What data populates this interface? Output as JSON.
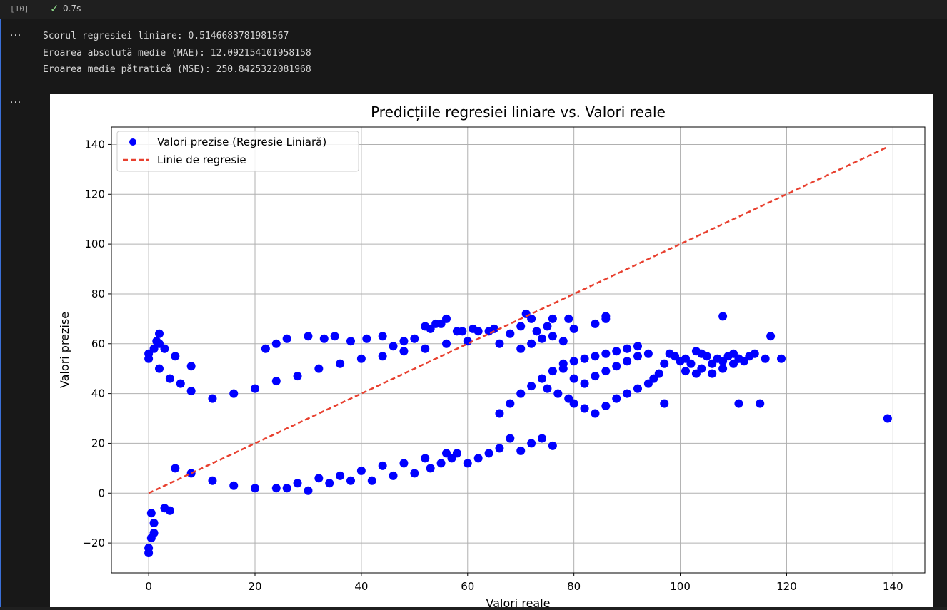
{
  "cell": {
    "execution_count": "[10]",
    "status_icon": "check-icon",
    "duration": "0.7s"
  },
  "output": {
    "lines": [
      "Scorul regresiei liniare: 0.5146683781981567",
      "Eroarea absolută medie (MAE): 12.092154101958158",
      "Eroarea medie pătratică (MSE): 250.8425322081968"
    ],
    "ellipsis": "..."
  },
  "chart_data": {
    "type": "scatter",
    "title": "Predicțiile regresiei liniare vs. Valori reale",
    "xlabel": "Valori reale",
    "ylabel": "Valori prezise",
    "xlim": [
      -7,
      146
    ],
    "ylim": [
      -32,
      147
    ],
    "xticks": [
      0,
      20,
      40,
      60,
      80,
      100,
      120,
      140
    ],
    "yticks": [
      -20,
      0,
      20,
      40,
      60,
      80,
      100,
      120,
      140
    ],
    "grid": true,
    "legend_position": "top-left",
    "colors": {
      "points": "#0000ff",
      "line": "#e8402f"
    },
    "series": [
      {
        "name": "Valori prezise (Regresie Liniară)",
        "kind": "scatter",
        "color": "#0000ff",
        "points": [
          [
            0,
            -24
          ],
          [
            0,
            -22
          ],
          [
            0.5,
            -18
          ],
          [
            1,
            -16
          ],
          [
            1,
            -12
          ],
          [
            0.5,
            -8
          ],
          [
            0,
            54
          ],
          [
            0,
            56
          ],
          [
            1,
            58
          ],
          [
            1.5,
            61
          ],
          [
            2,
            64
          ],
          [
            3,
            -6
          ],
          [
            4,
            -7
          ],
          [
            2,
            60
          ],
          [
            3,
            58
          ],
          [
            5,
            55
          ],
          [
            8,
            51
          ],
          [
            2,
            50
          ],
          [
            4,
            46
          ],
          [
            6,
            44
          ],
          [
            8,
            41
          ],
          [
            12,
            38
          ],
          [
            16,
            40
          ],
          [
            20,
            42
          ],
          [
            24,
            45
          ],
          [
            28,
            47
          ],
          [
            32,
            50
          ],
          [
            36,
            52
          ],
          [
            40,
            54
          ],
          [
            44,
            55
          ],
          [
            48,
            57
          ],
          [
            52,
            58
          ],
          [
            56,
            60
          ],
          [
            60,
            61
          ],
          [
            5,
            10
          ],
          [
            8,
            8
          ],
          [
            12,
            5
          ],
          [
            16,
            3
          ],
          [
            20,
            2
          ],
          [
            24,
            2
          ],
          [
            28,
            4
          ],
          [
            32,
            6
          ],
          [
            36,
            7
          ],
          [
            40,
            9
          ],
          [
            44,
            11
          ],
          [
            48,
            12
          ],
          [
            52,
            14
          ],
          [
            56,
            16
          ],
          [
            22,
            58
          ],
          [
            24,
            60
          ],
          [
            26,
            62
          ],
          [
            30,
            63
          ],
          [
            33,
            62
          ],
          [
            35,
            63
          ],
          [
            38,
            61
          ],
          [
            41,
            62
          ],
          [
            44,
            63
          ],
          [
            46,
            59
          ],
          [
            48,
            61
          ],
          [
            50,
            62
          ],
          [
            52,
            67
          ],
          [
            53,
            66
          ],
          [
            54,
            68
          ],
          [
            55,
            68
          ],
          [
            56,
            70
          ],
          [
            58,
            65
          ],
          [
            59,
            65
          ],
          [
            61,
            66
          ],
          [
            62,
            65
          ],
          [
            64,
            65
          ],
          [
            65,
            66
          ],
          [
            26,
            2
          ],
          [
            30,
            1
          ],
          [
            34,
            4
          ],
          [
            38,
            5
          ],
          [
            42,
            5
          ],
          [
            46,
            7
          ],
          [
            50,
            8
          ],
          [
            53,
            10
          ],
          [
            55,
            12
          ],
          [
            57,
            14
          ],
          [
            58,
            16
          ],
          [
            60,
            12
          ],
          [
            62,
            14
          ],
          [
            64,
            16
          ],
          [
            66,
            18
          ],
          [
            68,
            22
          ],
          [
            70,
            17
          ],
          [
            72,
            20
          ],
          [
            74,
            22
          ],
          [
            76,
            19
          ],
          [
            66,
            32
          ],
          [
            68,
            36
          ],
          [
            70,
            40
          ],
          [
            72,
            43
          ],
          [
            74,
            46
          ],
          [
            76,
            49
          ],
          [
            78,
            50
          ],
          [
            80,
            46
          ],
          [
            82,
            44
          ],
          [
            84,
            47
          ],
          [
            86,
            49
          ],
          [
            88,
            51
          ],
          [
            90,
            53
          ],
          [
            92,
            55
          ],
          [
            94,
            56
          ],
          [
            78,
            52
          ],
          [
            80,
            53
          ],
          [
            82,
            54
          ],
          [
            84,
            55
          ],
          [
            86,
            56
          ],
          [
            88,
            57
          ],
          [
            90,
            58
          ],
          [
            92,
            59
          ],
          [
            70,
            58
          ],
          [
            72,
            60
          ],
          [
            74,
            62
          ],
          [
            76,
            63
          ],
          [
            78,
            61
          ],
          [
            80,
            66
          ],
          [
            84,
            68
          ],
          [
            86,
            70
          ],
          [
            71,
            72
          ],
          [
            72,
            70
          ],
          [
            76,
            70
          ],
          [
            79,
            70
          ],
          [
            86,
            71
          ],
          [
            66,
            60
          ],
          [
            68,
            64
          ],
          [
            70,
            67
          ],
          [
            73,
            65
          ],
          [
            75,
            67
          ],
          [
            75,
            42
          ],
          [
            77,
            40
          ],
          [
            79,
            38
          ],
          [
            80,
            36
          ],
          [
            82,
            34
          ],
          [
            84,
            32
          ],
          [
            86,
            35
          ],
          [
            88,
            38
          ],
          [
            90,
            40
          ],
          [
            92,
            42
          ],
          [
            94,
            44
          ],
          [
            95,
            46
          ],
          [
            96,
            48
          ],
          [
            97,
            52
          ],
          [
            97,
            36
          ],
          [
            98,
            56
          ],
          [
            99,
            55
          ],
          [
            100,
            53
          ],
          [
            101,
            54
          ],
          [
            102,
            52
          ],
          [
            103,
            57
          ],
          [
            104,
            56
          ],
          [
            105,
            55
          ],
          [
            106,
            52
          ],
          [
            107,
            54
          ],
          [
            108,
            53
          ],
          [
            109,
            55
          ],
          [
            110,
            56
          ],
          [
            111,
            54
          ],
          [
            112,
            53
          ],
          [
            114,
            56
          ],
          [
            116,
            54
          ],
          [
            117,
            63
          ],
          [
            119,
            54
          ],
          [
            101,
            49
          ],
          [
            103,
            48
          ],
          [
            104,
            50
          ],
          [
            106,
            48
          ],
          [
            108,
            50
          ],
          [
            110,
            52
          ],
          [
            108,
            71
          ],
          [
            111,
            36
          ],
          [
            115,
            36
          ],
          [
            139,
            30
          ],
          [
            111,
            54
          ],
          [
            113,
            55
          ]
        ]
      },
      {
        "name": "Linie de regresie",
        "kind": "line",
        "style": "dashed",
        "color": "#e8402f",
        "points": [
          [
            0,
            0
          ],
          [
            139,
            139
          ]
        ]
      }
    ]
  }
}
